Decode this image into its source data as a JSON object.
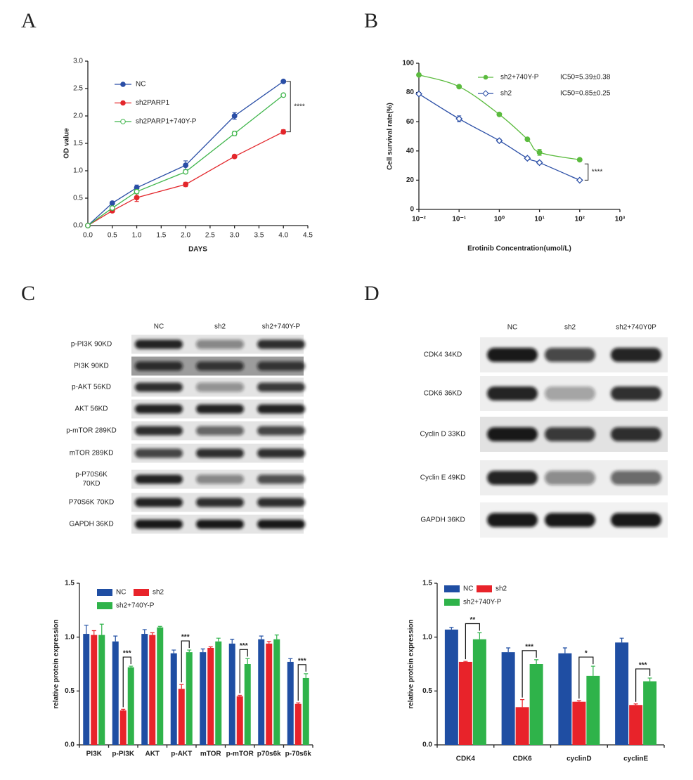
{
  "panels": [
    "A",
    "B",
    "C",
    "D"
  ],
  "blot_c": {
    "columns": [
      "NC",
      "sh2",
      "sh2+740Y-P"
    ],
    "rows": [
      "p-PI3K 90KD",
      "PI3K 90KD",
      "p-AKT 56KD",
      "AKT 56KD",
      "p-mTOR 289KD",
      "mTOR 289KD",
      [
        "p-P70S6K",
        "70KD"
      ],
      "P70S6K 70KD",
      "GAPDH 36KD"
    ]
  },
  "blot_d": {
    "columns": [
      "NC",
      "sh2",
      "sh2+740Y0P"
    ],
    "rows": [
      "CDK4 34KD",
      "CDK6 36KD",
      "Cyclin D 33KD",
      "Cyclin E 49KD",
      "GAPDH 36KD"
    ]
  },
  "chart_data": [
    {
      "type": "line",
      "xlabel": "DAYS",
      "ylabel": "OD value",
      "x": [
        0,
        0.5,
        1,
        2,
        3,
        4
      ],
      "series": [
        {
          "name": "NC",
          "color": "#2a4ea6",
          "marker": "filled",
          "values": [
            0,
            0.41,
            0.69,
            1.1,
            2.0,
            2.63
          ],
          "errors": [
            0,
            0.03,
            0.05,
            0.08,
            0.06,
            0.02
          ]
        },
        {
          "name": "sh2PARP1",
          "color": "#e3262b",
          "marker": "filled",
          "values": [
            0,
            0.27,
            0.51,
            0.75,
            1.26,
            1.71
          ],
          "errors": [
            0,
            0.03,
            0.07,
            0.04,
            0.03,
            0.04
          ]
        },
        {
          "name": "sh2PARP1+740Y-P",
          "color": "#3fb54b",
          "marker": "open",
          "values": [
            0,
            0.32,
            0.62,
            0.98,
            1.68,
            2.38
          ],
          "errors": [
            0,
            0.02,
            0.04,
            0.03,
            0.04,
            0.02
          ]
        }
      ],
      "annotation": "****",
      "xlim": [
        0,
        4.5
      ],
      "xticks": [
        {
          "value": 0,
          "label": "0.0"
        },
        0.5,
        {
          "value": 1,
          "label": "1.0"
        },
        1.5,
        {
          "value": 2,
          "label": "2.0"
        },
        2.5,
        {
          "value": 3,
          "label": "3.0"
        },
        3.5,
        {
          "value": 4,
          "label": "4.0"
        },
        4.5
      ],
      "ylim": [
        0,
        3
      ],
      "yticks": [
        {
          "value": 0,
          "label": "0.0"
        },
        0.5,
        {
          "value": 1,
          "label": "1.0"
        },
        1.5,
        {
          "value": 2,
          "label": "2.0"
        },
        2.5,
        {
          "value": 3,
          "label": "3.0"
        }
      ]
    },
    {
      "type": "scatter",
      "xlabel": "Erotinib Concentration(umol/L)",
      "ylabel": "Cell survival rate(%)",
      "xscale": "log",
      "curve": "smooth",
      "x": [
        0.01,
        0.1,
        1,
        5,
        10,
        100
      ],
      "series": [
        {
          "name": "sh2+740Y-P",
          "label": "IC50=5.39±0.38",
          "color": "#5bbb3e",
          "marker": "circle",
          "values": [
            92,
            84,
            65,
            48,
            39,
            34
          ],
          "errors": [
            0,
            0,
            0,
            0,
            2,
            0
          ]
        },
        {
          "name": "sh2",
          "label": "IC50=0.85±0.25",
          "color": "#2a4ea6",
          "marker": "diamond",
          "values": [
            79,
            62,
            47,
            35,
            32,
            20
          ],
          "errors": [
            1,
            2,
            1,
            1,
            1,
            0
          ]
        }
      ],
      "annotation": "****",
      "xlim": [
        0.01,
        1000
      ],
      "xticks": [
        {
          "value": 0.01,
          "label": "10⁻²"
        },
        {
          "value": 0.1,
          "label": "10⁻¹"
        },
        {
          "value": 1,
          "label": "10⁰"
        },
        {
          "value": 10,
          "label": "10¹"
        },
        {
          "value": 100,
          "label": "10²"
        },
        {
          "value": 1000,
          "label": "10³"
        }
      ],
      "ylim": [
        0,
        100
      ],
      "yticks": [
        0,
        20,
        40,
        60,
        80,
        100
      ]
    },
    {
      "type": "bar",
      "ylabel": "relative protein expression",
      "categories": [
        "PI3K",
        "p-PI3K",
        "AKT",
        "p-AKT",
        "mTOR",
        "p-mTOR",
        "p70s6k",
        "p-70s6k"
      ],
      "series": [
        {
          "name": "NC",
          "color": "#1f4ea3",
          "values": [
            1.03,
            0.96,
            1.03,
            0.85,
            0.86,
            0.94,
            0.98,
            0.77
          ],
          "errors": [
            0.08,
            0.05,
            0.04,
            0.03,
            0.03,
            0.04,
            0.03,
            0.03
          ]
        },
        {
          "name": "sh2",
          "color": "#e8232a",
          "values": [
            1.02,
            0.32,
            1.02,
            0.52,
            0.9,
            0.45,
            0.94,
            0.38
          ],
          "errors": [
            0.04,
            0.01,
            0.02,
            0.04,
            0.01,
            0.01,
            0.02,
            0.01
          ]
        },
        {
          "name": "sh2+740Y-P",
          "color": "#2fb34a",
          "values": [
            1.02,
            0.72,
            1.09,
            0.86,
            0.96,
            0.75,
            0.98,
            0.62
          ],
          "errors": [
            0.1,
            0.01,
            0.01,
            0.02,
            0.03,
            0.05,
            0.04,
            0.04
          ]
        }
      ],
      "significance": [
        null,
        "***",
        null,
        "***",
        null,
        "***",
        null,
        "***"
      ],
      "ylim": [
        0,
        1.5
      ],
      "yticks": [
        {
          "value": 0,
          "label": "0.0"
        },
        0.5,
        {
          "value": 1,
          "label": "1.0"
        },
        1.5
      ]
    },
    {
      "type": "bar",
      "ylabel": "relative protein expression",
      "categories": [
        "CDK4",
        "CDK6",
        "cyclinD",
        "cyclinE"
      ],
      "series": [
        {
          "name": "NC",
          "color": "#1f4ea3",
          "values": [
            1.07,
            0.86,
            0.85,
            0.95
          ],
          "errors": [
            0.02,
            0.04,
            0.05,
            0.04
          ]
        },
        {
          "name": "sh2",
          "color": "#e8232a",
          "values": [
            0.77,
            0.35,
            0.4,
            0.37
          ],
          "errors": [
            0.005,
            0.07,
            0.01,
            0.01
          ]
        },
        {
          "name": "sh2+740Y-P",
          "color": "#2fb34a",
          "values": [
            0.98,
            0.75,
            0.64,
            0.59
          ],
          "errors": [
            0.06,
            0.04,
            0.09,
            0.03
          ]
        }
      ],
      "significance": [
        "**",
        "***",
        "*",
        "***"
      ],
      "ylim": [
        0,
        1.5
      ],
      "yticks": [
        {
          "value": 0,
          "label": "0.0"
        },
        0.5,
        {
          "value": 1,
          "label": "1.0"
        },
        1.5
      ]
    }
  ]
}
